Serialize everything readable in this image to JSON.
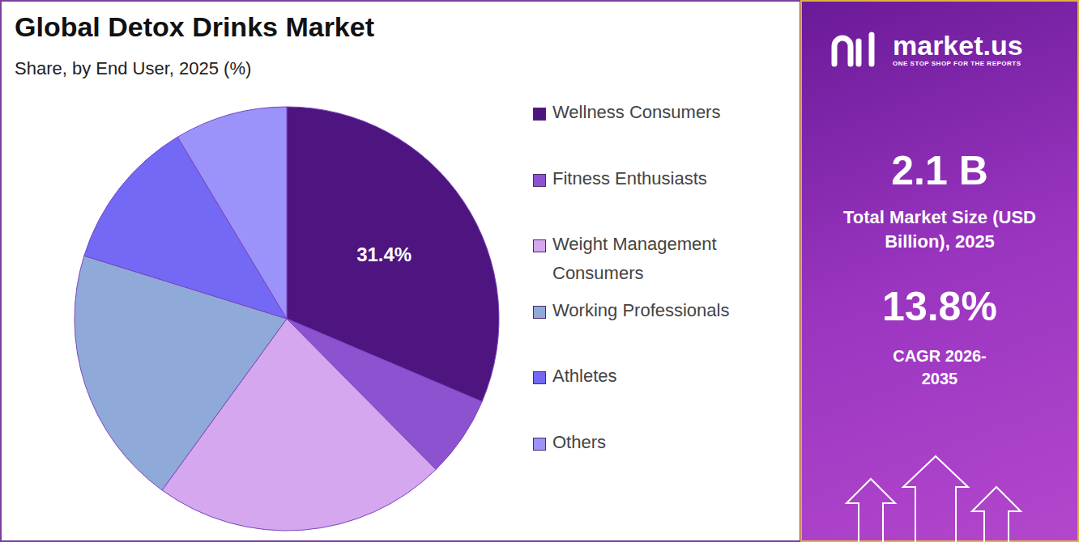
{
  "chart_data": {
    "type": "pie",
    "title": "Global Detox Drinks Market",
    "subtitle": "Share, by End User, 2025 (%)",
    "categories": [
      "Wellness Consumers",
      "Fitness Enthusiasts",
      "Weight Management Consumers",
      "Working Professionals",
      "Athletes",
      "Others"
    ],
    "values": [
      31.4,
      6.2,
      22.4,
      19.8,
      11.6,
      8.6
    ],
    "value_labels": [
      "31.4%",
      null,
      null,
      null,
      null,
      null
    ],
    "colors": [
      "#4e1480",
      "#8c52d0",
      "#d4a7ee",
      "#8faad8",
      "#7369f5",
      "#9b93fa"
    ],
    "legend": "right"
  },
  "sidebar": {
    "brand": "market.us",
    "tagline": "ONE STOP SHOP FOR THE REPORTS",
    "market_size": "2.1 B",
    "market_size_label": "Total Market Size (USD Billion), 2025",
    "cagr": "13.8%",
    "cagr_label": "CAGR 2026-2035"
  }
}
